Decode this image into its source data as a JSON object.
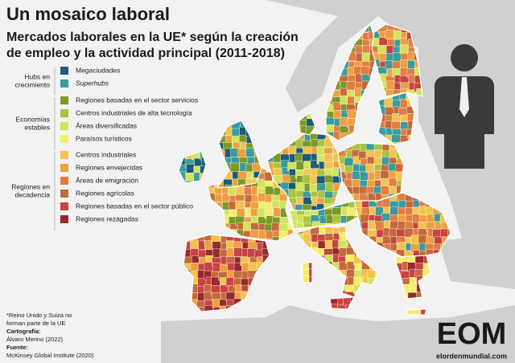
{
  "header": {
    "title": "Un mosaico laboral",
    "subtitle_lines": [
      "Mercados laborales en la UE* según la creación",
      "de empleo y la actividad principal (2011-2018)"
    ]
  },
  "legend": {
    "groups": [
      {
        "label_lines": [
          "Hubs en",
          "crecimiento"
        ],
        "items": [
          {
            "label": "Megaciudades",
            "color": "#1d5c78"
          },
          {
            "label": "Superhubs",
            "color": "#3a9c9c",
            "italic": true
          }
        ]
      },
      {
        "label_lines": [
          "Economías",
          "estables"
        ],
        "items": [
          {
            "label": "Regiones basadas en el sector servicios",
            "color": "#7b9a26"
          },
          {
            "label": "Centros industriales de alta tecnología",
            "color": "#a9c43c"
          },
          {
            "label": "Áreas diversificadas",
            "color": "#d3e35c"
          },
          {
            "label": "Paraísos turísticos",
            "color": "#f3ee6c"
          }
        ]
      },
      {
        "label_lines": [
          "Regiones en",
          "decadencia"
        ],
        "items": [
          {
            "label": "Centros industriales",
            "color": "#f2c350"
          },
          {
            "label": "Regiones envejecidas",
            "color": "#eda042"
          },
          {
            "label": "Áreas de emigración",
            "color": "#e07f42"
          },
          {
            "label": "Regiones agrícolas",
            "color": "#c56a3a"
          },
          {
            "label": "Regiones basadas en el sector público",
            "color": "#c9433f"
          },
          {
            "label": "Regiones rezagadas",
            "color": "#962a2c"
          }
        ]
      }
    ]
  },
  "footer": {
    "note_lines": [
      "*Reino Unido y Suiza no",
      "forman parte de la UE"
    ],
    "cartography_label": "Cartografía:",
    "cartography": "Álvaro Merino (2022)",
    "source_label": "Fuente:",
    "source": "McKinsey Global Institute (2020)",
    "logo": "EOM",
    "site": "elordenmundial.com"
  }
}
